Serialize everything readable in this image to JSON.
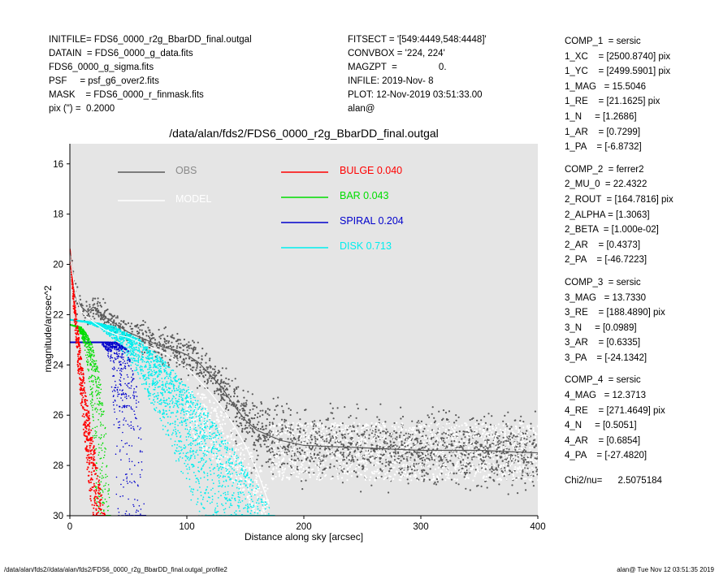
{
  "header_left": [
    "INITFILE= FDS6_0000_r2g_BbarDD_final.outgal",
    "DATAIN  = FDS6_0000_g_data.fits",
    "FDS6_0000_g_sigma.fits",
    "PSF     = psf_g6_over2.fits",
    "MASK    = FDS6_0000_r_finmask.fits",
    "pix (\") =  0.2000"
  ],
  "header_mid": [
    "FITSECT = '[549:4449,548:4448]'",
    "CONVBOX = '224, 224'",
    "MAGZPT  =                0.",
    "INFILE: 2019-Nov- 8",
    "PLOT: 12-Nov-2019 03:51:33.00",
    "alan@"
  ],
  "components": [
    {
      "header": "COMP_1  = sersic",
      "params": [
        "1_XC    = [2500.8740] pix",
        "1_YC    = [2499.5901] pix",
        "1_MAG   = 15.5046",
        "1_RE    = [21.1625] pix",
        "1_N     = [1.2686]",
        "1_AR    = [0.7299]",
        "1_PA    = [-6.8732]"
      ]
    },
    {
      "header": "COMP_2  = ferrer2",
      "params": [
        "2_MU_0  = 22.4322",
        "2_ROUT  = [164.7816] pix",
        "2_ALPHA = [1.3063]",
        "2_BETA  = [1.000e-02]",
        "2_AR    = [0.4373]",
        "2_PA    = [-46.7223]"
      ]
    },
    {
      "header": "COMP_3  = sersic",
      "params": [
        "3_MAG   = 13.7330",
        "3_RE    = [188.4890] pix",
        "3_N     = [0.0989]",
        "3_AR    = [0.6335]",
        "3_PA    = [-24.1342]"
      ]
    },
    {
      "header": "COMP_4  = sersic",
      "params": [
        "4_MAG   = 12.3713",
        "4_RE    = [271.4649] pix",
        "4_N     = [0.5051]",
        "4_AR    = [0.6854]",
        "4_PA    = [-27.4820]"
      ]
    }
  ],
  "chi2": "Chi2/nu=      2.5075184",
  "footer_left": "/data/alan/fds2//data/alan/fds2/FDS6_0000_r2g_BbarDD_final.outgal_profile2",
  "footer_right": "alan@  Tue Nov 12 03:51:35 2019",
  "colors": {
    "plot_bg": "#e5e5e5",
    "obs": "#595959",
    "model": "#ffffff",
    "bulge": "#ff0000",
    "bar": "#00dd00",
    "spiral": "#0000cc",
    "disk": "#00eeee"
  },
  "chart_data": {
    "type": "scatter",
    "title": "/data/alan/fds2/FDS6_0000_r2g_BbarDD_final.outgal",
    "xlabel": "Distance along sky [arcsec]",
    "ylabel": "magnitude/arcsec^2",
    "xlim": [
      0,
      400
    ],
    "ylim": [
      30,
      15.2
    ],
    "y_inverted": true,
    "xticks": [
      0,
      100,
      200,
      300,
      400
    ],
    "yticks": [
      16,
      18,
      20,
      22,
      24,
      26,
      28,
      30
    ],
    "grid": false,
    "legend": [
      {
        "label": "OBS",
        "fraction": ""
      },
      {
        "label": "MODEL",
        "fraction": ""
      },
      {
        "label": "BULGE",
        "fraction": "0.040"
      },
      {
        "label": "BAR",
        "fraction": "0.043"
      },
      {
        "label": "SPIRAL",
        "fraction": "0.204"
      },
      {
        "label": "DISK",
        "fraction": "0.713"
      }
    ],
    "series": [
      {
        "name": "OBS",
        "x": [
          0,
          5,
          10,
          15,
          20,
          30,
          40,
          50,
          60,
          70,
          80,
          90,
          100,
          110,
          120,
          130,
          140,
          150,
          160,
          180,
          200,
          250,
          300,
          350,
          400
        ],
        "y": [
          19.5,
          21.3,
          21.7,
          21.9,
          21.7,
          22.1,
          22.4,
          22.7,
          22.9,
          23.1,
          23.3,
          23.4,
          23.6,
          23.9,
          24.4,
          24.9,
          25.6,
          26.2,
          26.6,
          27.0,
          27.2,
          27.3,
          27.4,
          27.4,
          27.5
        ]
      },
      {
        "name": "MODEL",
        "x": [
          0,
          5,
          10,
          20,
          30,
          40,
          50,
          60,
          70,
          80,
          90,
          100,
          110,
          120,
          130,
          140,
          150,
          160,
          170
        ],
        "y": [
          19.6,
          21.2,
          21.9,
          22.3,
          22.6,
          22.8,
          22.9,
          23.1,
          23.3,
          23.5,
          23.8,
          24.1,
          24.6,
          25.1,
          25.7,
          26.4,
          27.2,
          28.2,
          29.5
        ]
      },
      {
        "name": "BULGE",
        "x": [
          0,
          5,
          10,
          15,
          20,
          25,
          30
        ],
        "y": [
          19.4,
          21.8,
          23.8,
          25.5,
          27.0,
          28.5,
          30.0
        ]
      },
      {
        "name": "BAR",
        "x": [
          0,
          10,
          15,
          20,
          25,
          30,
          35
        ],
        "y": [
          22.4,
          22.5,
          22.8,
          23.3,
          24.3,
          26.0,
          30.0
        ]
      },
      {
        "name": "SPIRAL",
        "x": [
          0,
          20,
          30,
          40,
          50,
          55,
          60,
          65
        ],
        "y": [
          23.1,
          23.1,
          23.1,
          23.1,
          23.4,
          24.2,
          25.8,
          30.0
        ]
      },
      {
        "name": "DISK",
        "x": [
          0,
          20,
          40,
          60,
          80,
          100,
          120,
          140,
          160,
          175
        ],
        "y": [
          22.2,
          22.3,
          22.5,
          23.0,
          23.8,
          24.8,
          26.0,
          27.4,
          28.8,
          30.0
        ]
      }
    ]
  }
}
